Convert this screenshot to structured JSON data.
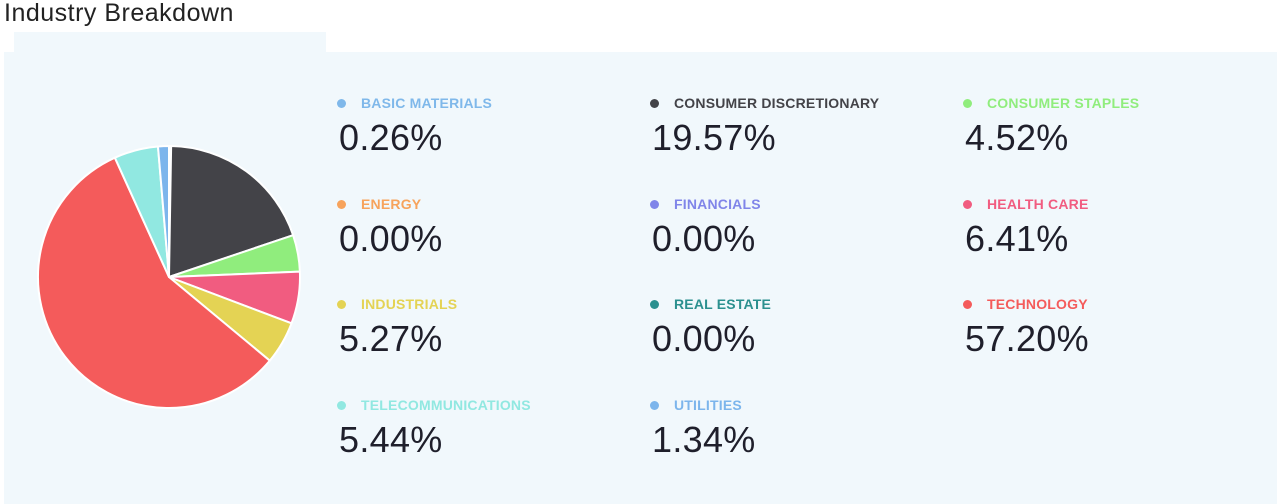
{
  "title": "Industry Breakdown",
  "chart_data": {
    "type": "pie",
    "title": "Industry Breakdown",
    "legend_position": "right",
    "slices": [
      {
        "label": "BASIC MATERIALS",
        "value": 0.26,
        "display": "0.26%",
        "color": "#7fb8ea"
      },
      {
        "label": "CONSUMER DISCRETIONARY",
        "value": 19.57,
        "display": "19.57%",
        "color": "#434348"
      },
      {
        "label": "CONSUMER STAPLES",
        "value": 4.52,
        "display": "4.52%",
        "color": "#90ed7d"
      },
      {
        "label": "ENERGY",
        "value": 0.0,
        "display": "0.00%",
        "color": "#f7a35c"
      },
      {
        "label": "FINANCIALS",
        "value": 0.0,
        "display": "0.00%",
        "color": "#8085e9"
      },
      {
        "label": "HEALTH CARE",
        "value": 6.41,
        "display": "6.41%",
        "color": "#f15c80"
      },
      {
        "label": "INDUSTRIALS",
        "value": 5.27,
        "display": "5.27%",
        "color": "#e4d354"
      },
      {
        "label": "REAL ESTATE",
        "value": 0.0,
        "display": "0.00%",
        "color": "#2b908f"
      },
      {
        "label": "TECHNOLOGY",
        "value": 57.2,
        "display": "57.20%",
        "color": "#f45b5b"
      },
      {
        "label": "TELECOMMUNICATIONS",
        "value": 5.44,
        "display": "5.44%",
        "color": "#91e8e1"
      },
      {
        "label": "UTILITIES",
        "value": 1.34,
        "display": "1.34%",
        "color": "#7cb5ec"
      }
    ],
    "pie_order": [
      "BASIC MATERIALS",
      "CONSUMER DISCRETIONARY",
      "CONSUMER STAPLES",
      "HEALTH CARE",
      "INDUSTRIALS",
      "TECHNOLOGY",
      "TELECOMMUNICATIONS",
      "UTILITIES"
    ]
  }
}
